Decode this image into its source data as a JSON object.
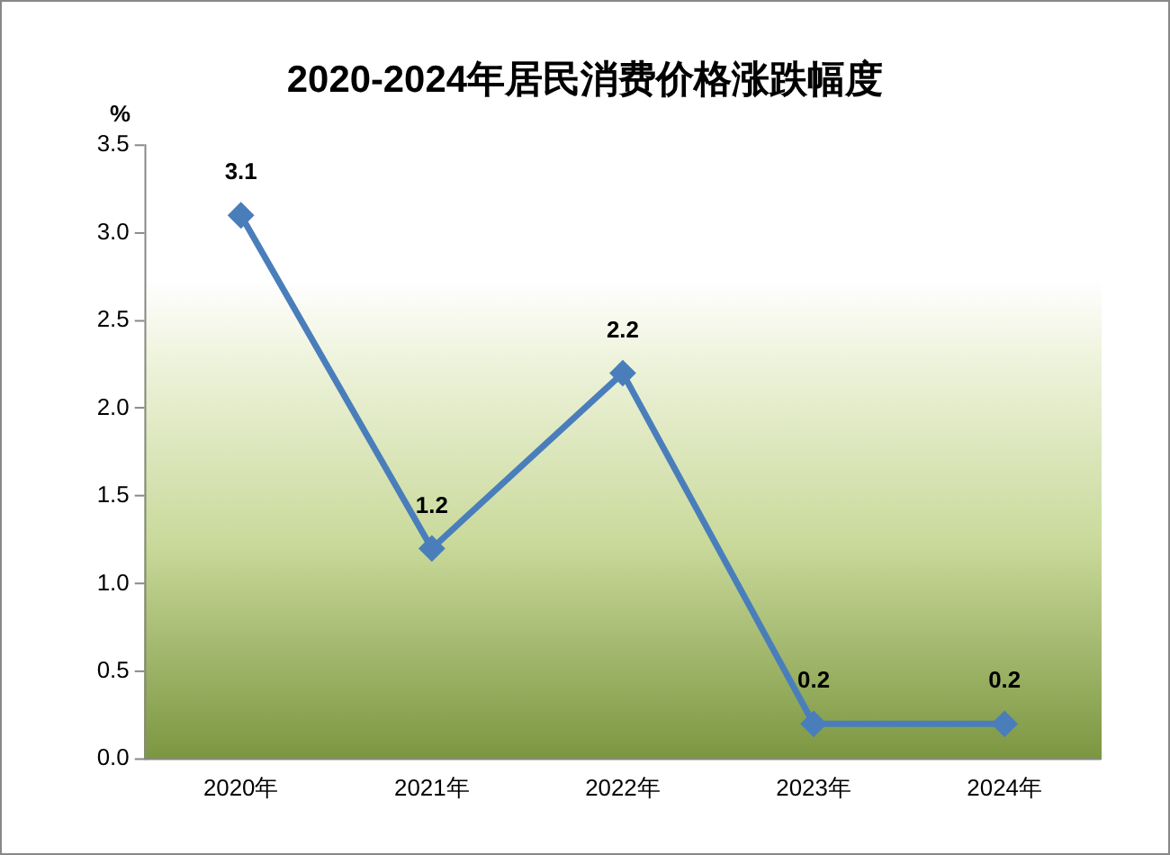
{
  "chart_data": {
    "type": "line",
    "title": "2020-2024年居民消费价格涨跌幅度",
    "ylabel": "%",
    "categories": [
      "2020年",
      "2021年",
      "2022年",
      "2023年",
      "2024年"
    ],
    "series": [
      {
        "color": "#4a7ebb",
        "values": [
          3.1,
          1.2,
          2.2,
          0.2,
          0.2
        ]
      }
    ],
    "ylim": [
      0,
      3.5
    ],
    "yticks": [
      {
        "value": 0,
        "label": "0.0"
      },
      {
        "value": 0.5,
        "label": "0.5"
      },
      {
        "value": 1,
        "label": "1.0"
      },
      {
        "value": 1.5,
        "label": "1.5"
      },
      {
        "value": 2,
        "label": "2.0"
      },
      {
        "value": 2.5,
        "label": "2.5"
      },
      {
        "value": 3,
        "label": "3.0"
      },
      {
        "value": 3.5,
        "label": "3.5"
      }
    ],
    "grid": false,
    "legend": false,
    "marker": "diamond",
    "line_style": "solid",
    "data_labels": true
  }
}
